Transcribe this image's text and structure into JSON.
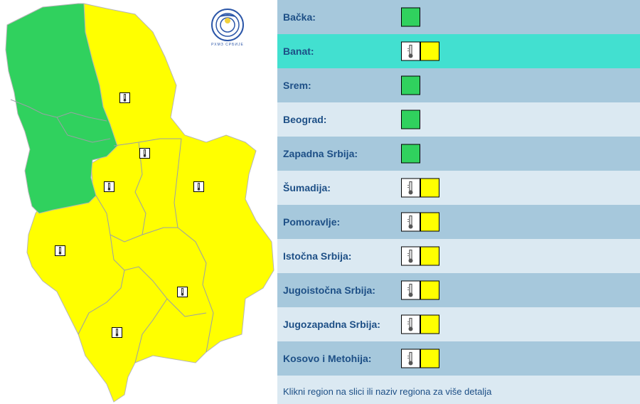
{
  "colors": {
    "green": "#30d15e",
    "yellow": "#ffff00",
    "row_dark": "#a6c8dc",
    "row_light": "#dbe9f2",
    "row_active": "#42e0d0",
    "link": "#1d4f86"
  },
  "map": {
    "logo_text": "РХМЗ СРБИЈЕ",
    "warning_icon": "thermometer-icon"
  },
  "regions": [
    {
      "label": "Bačka:",
      "level": "green",
      "icon": null
    },
    {
      "label": "Banat:",
      "level": "yellow",
      "icon": "thermometer-icon"
    },
    {
      "label": "Srem:",
      "level": "green",
      "icon": null
    },
    {
      "label": "Beograd:",
      "level": "green",
      "icon": null
    },
    {
      "label": "Zapadna Srbija:",
      "level": "green",
      "icon": null
    },
    {
      "label": "Šumadija:",
      "level": "yellow",
      "icon": "thermometer-icon"
    },
    {
      "label": "Pomoravlje:",
      "level": "yellow",
      "icon": "thermometer-icon"
    },
    {
      "label": "Istočna Srbija:",
      "level": "yellow",
      "icon": "thermometer-icon"
    },
    {
      "label": "Jugoistočna Srbija:",
      "level": "yellow",
      "icon": "thermometer-icon"
    },
    {
      "label": "Jugozapadna Srbija:",
      "level": "yellow",
      "icon": "thermometer-icon"
    },
    {
      "label": "Kosovo i Metohija:",
      "level": "yellow",
      "icon": "thermometer-icon"
    }
  ],
  "footer": "Klikni region na slici ili naziv regiona za više detalja"
}
